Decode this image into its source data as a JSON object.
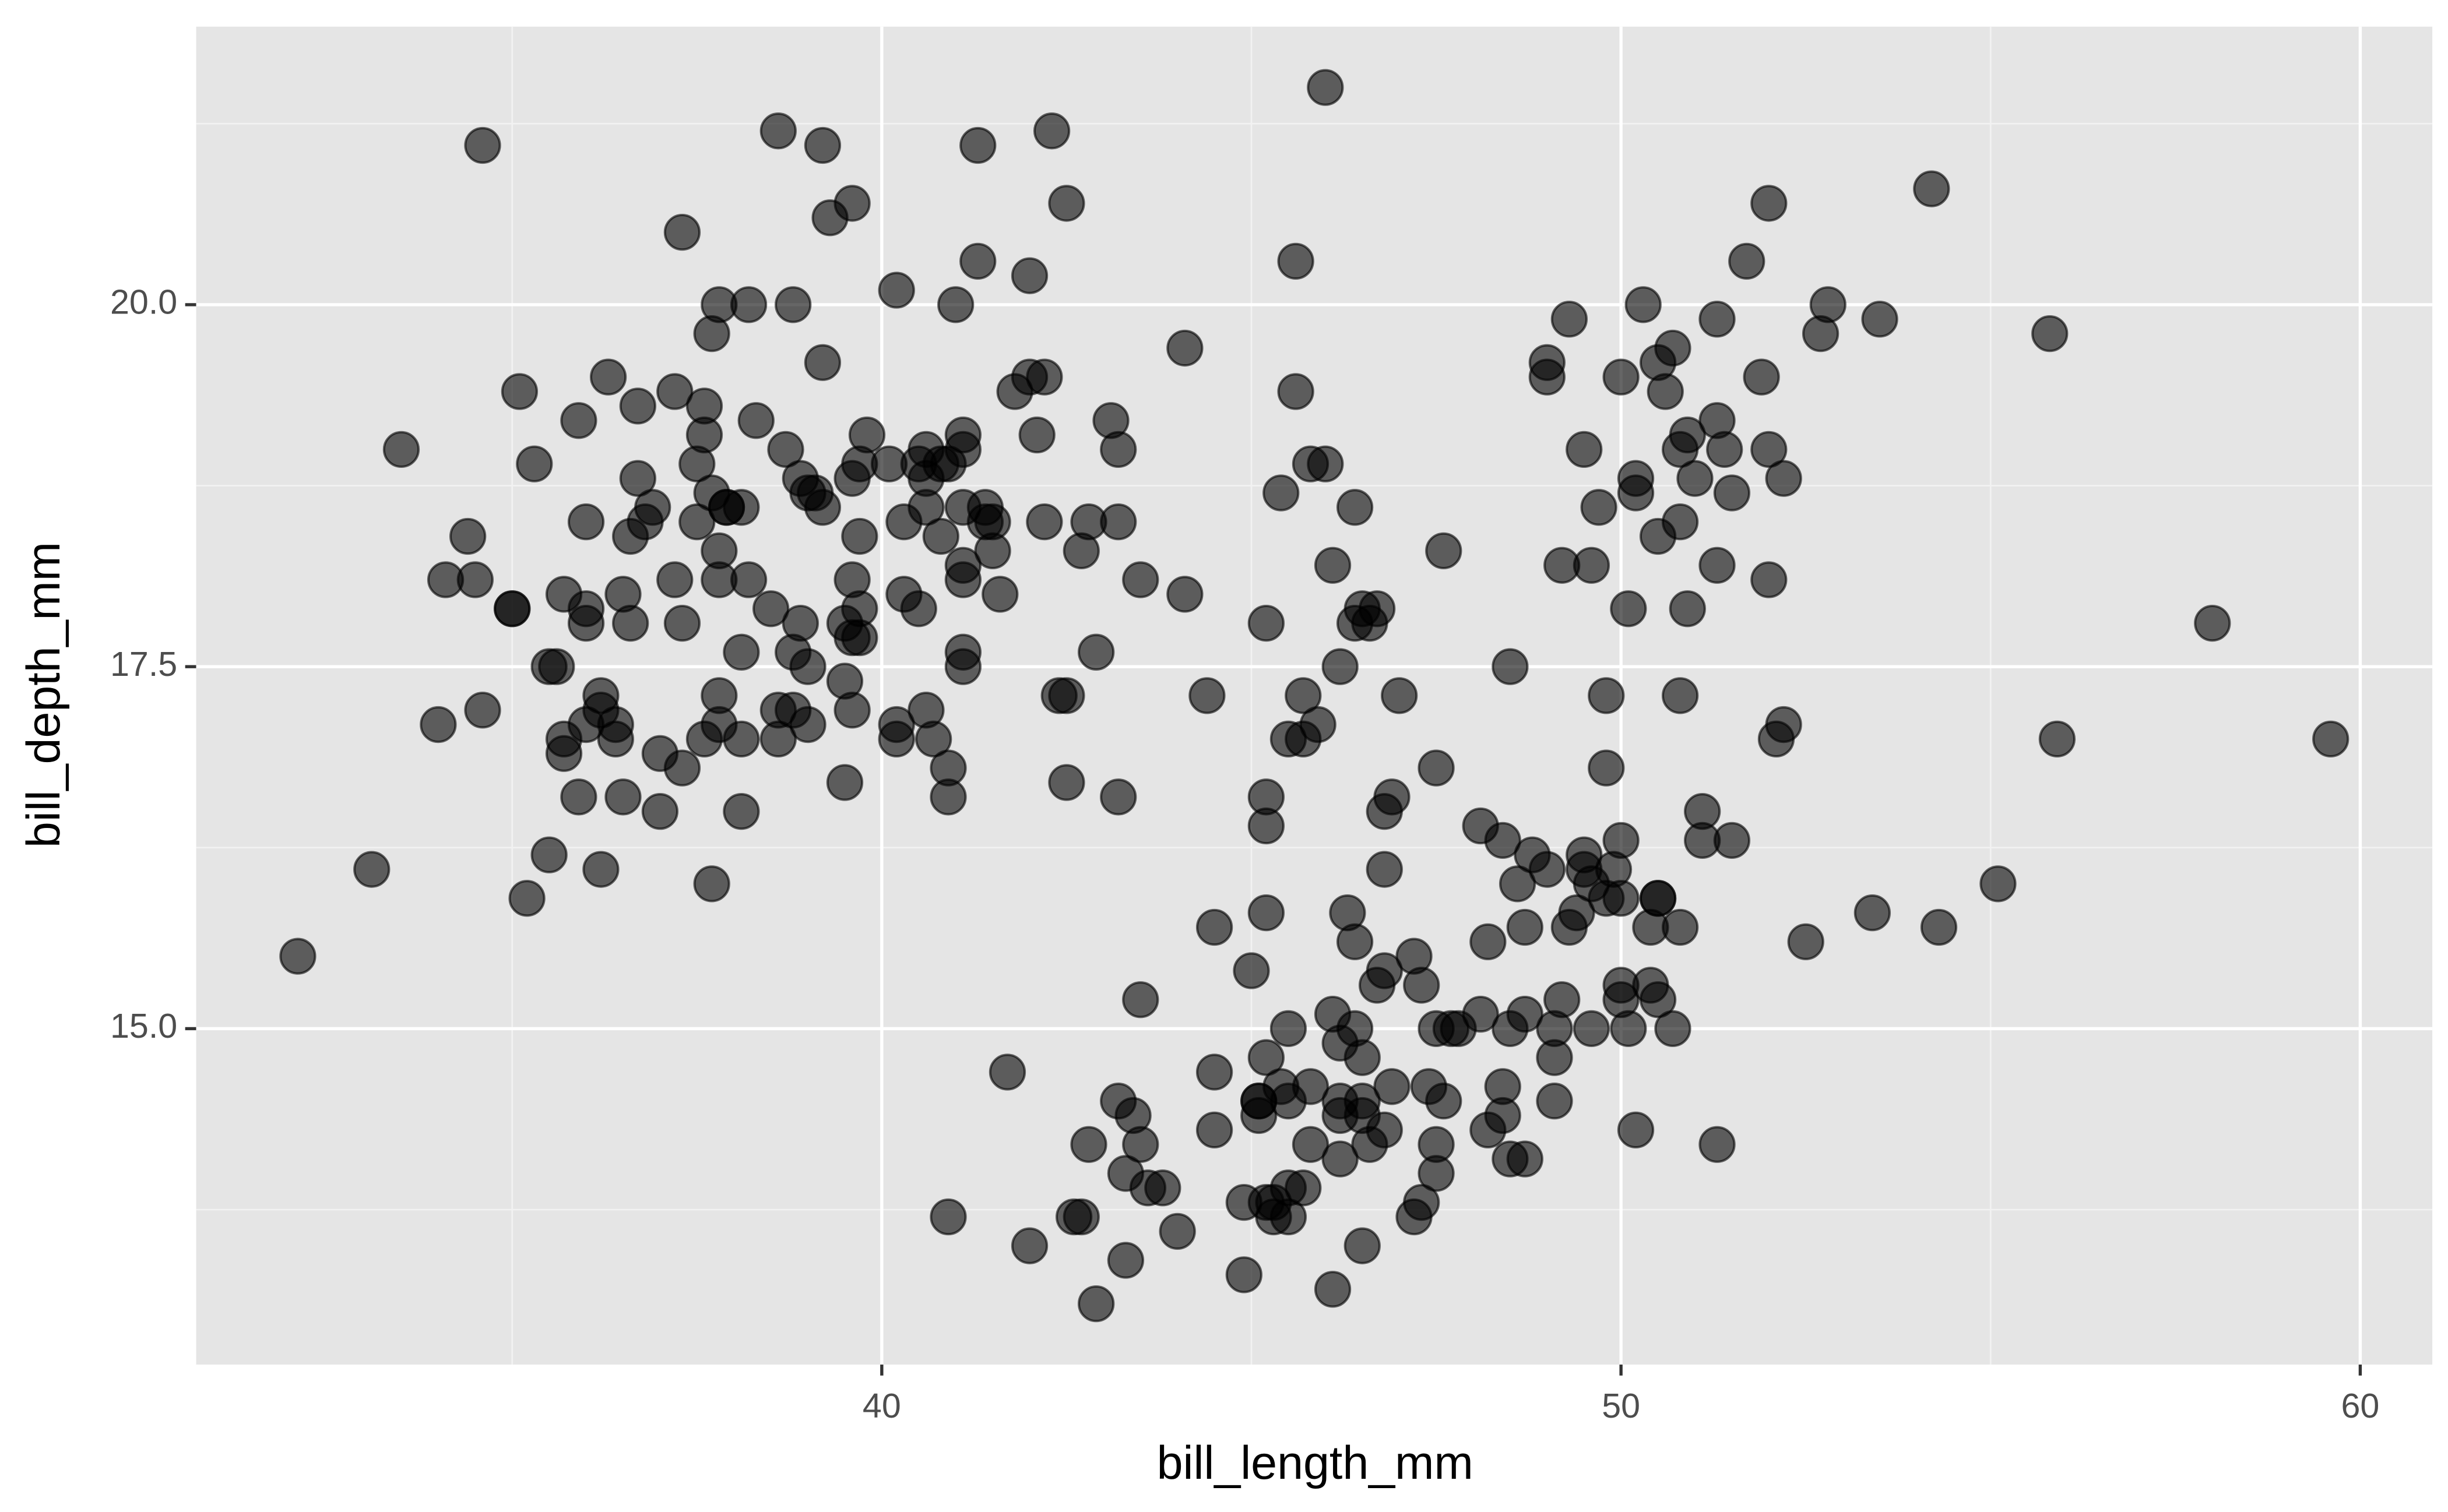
{
  "chart_data": {
    "type": "scatter",
    "x_label": "bill_length_mm",
    "y_label": "bill_depth_mm",
    "color": "#000000",
    "alpha": 0.6,
    "grid": true,
    "xlim": [
      30.725,
      60.975
    ],
    "ylim": [
      12.68,
      21.92
    ],
    "xticks": [
      40,
      50,
      60
    ],
    "yticks": [
      {
        "value": 15,
        "label": "15.0"
      },
      17.5,
      {
        "value": 20,
        "label": "20.0"
      }
    ],
    "x_minor_ticks": [
      35,
      45,
      55
    ],
    "y_minor_ticks": [
      13.75,
      16.25,
      18.75,
      21.25
    ],
    "x": [
      39.1,
      39.5,
      40.3,
      36.7,
      39.3,
      38.9,
      39.2,
      34.1,
      42,
      37.8,
      37.8,
      41.1,
      38.6,
      34.6,
      36.6,
      38.7,
      42.5,
      34.4,
      46,
      37.8,
      37.7,
      35.9,
      38.2,
      38.8,
      35.3,
      40.6,
      40.5,
      37.9,
      40.5,
      39.5,
      37.2,
      39.5,
      40.9,
      36.4,
      39.2,
      38.8,
      42.2,
      37.6,
      39.8,
      36.5,
      40.8,
      36,
      44.1,
      37,
      39.6,
      41.1,
      37.5,
      36,
      42.3,
      39.6,
      40.1,
      35,
      42,
      34.5,
      41.4,
      39,
      40.6,
      36.5,
      37.6,
      35.7,
      41.3,
      37.6,
      41.1,
      36.4,
      41.6,
      35.5,
      41.1,
      35.9,
      41.8,
      33.5,
      39.7,
      39.6,
      45.8,
      35.5,
      42.8,
      40.9,
      37.2,
      36.2,
      42.1,
      34.6,
      42.9,
      36.7,
      35.1,
      37.3,
      41.3,
      36.3,
      36.9,
      38.3,
      38.9,
      35.7,
      41.1,
      34,
      39.6,
      36.2,
      40.8,
      38.1,
      40.3,
      33.1,
      43.2,
      35,
      41,
      37.7,
      37.8,
      37.9,
      39.7,
      38.6,
      38.2,
      38.1,
      43.2,
      38.1,
      45.6,
      39.7,
      42.2,
      39.6,
      42.7,
      38.6,
      37.3,
      35.7,
      41.1,
      36.2,
      37.7,
      40.2,
      41.4,
      35.2,
      40.6,
      38.8,
      41.5,
      39,
      44.1,
      38.5,
      43.1,
      36.8,
      37.5,
      38.1,
      41.1,
      35.6,
      40.2,
      37,
      39.7,
      40.2,
      40.6,
      32.1,
      40.7,
      37.3,
      39,
      39.2,
      36.6,
      36,
      37.8,
      36,
      41.5,
      46.1,
      50,
      48.7,
      50,
      47.6,
      46.5,
      45.4,
      46.7,
      43.3,
      46.8,
      40.9,
      49,
      45.5,
      48.4,
      45.8,
      49.3,
      42,
      49.2,
      46.2,
      48.7,
      50.2,
      45.1,
      46.5,
      46.3,
      42.9,
      46.1,
      44.5,
      47.8,
      48.2,
      50,
      47.3,
      42.8,
      45.1,
      59.6,
      49.1,
      48.4,
      42.6,
      44.4,
      44,
      48.7,
      42.7,
      49.6,
      45.3,
      49.6,
      50.5,
      43.6,
      45.5,
      50.5,
      44.9,
      45.2,
      46.6,
      48.5,
      45.1,
      50.1,
      46.5,
      45,
      43.8,
      45.5,
      43.2,
      50.4,
      45.3,
      46.2,
      45.7,
      54.3,
      45.8,
      49.8,
      46.2,
      49.5,
      43.5,
      50.7,
      47.7,
      46.4,
      48.2,
      46.5,
      46.4,
      48.6,
      47.5,
      51.1,
      45.2,
      45.2,
      49.1,
      52.5,
      47.4,
      50,
      44.9,
      50.8,
      43.4,
      51.3,
      47.5,
      52.1,
      47.5,
      52.2,
      45.5,
      49.5,
      44.5,
      50.8,
      49.4,
      46.9,
      48.4,
      51.1,
      48.5,
      55.9,
      47.2,
      49.1,
      47.3,
      46.8,
      41.7,
      53.4,
      43.3,
      48.1,
      50.5,
      49.8,
      43.5,
      51.5,
      46.2,
      55.1,
      44.5,
      48.8,
      47.2,
      46.8,
      50.4,
      45.2,
      49.9,
      46.5,
      50,
      51.3,
      45.4,
      52.7,
      45.2,
      46.1,
      51.3,
      46,
      51.3,
      46.6,
      51.7,
      47,
      52,
      45.9,
      50.5,
      50.3,
      58,
      46.4,
      49.2,
      42.4,
      48.5,
      43.2,
      50.6,
      46.7,
      52,
      50.5,
      49.5,
      46.4,
      52.8,
      40.9,
      54.2,
      42.5,
      51,
      49.7,
      47.5,
      47.6,
      52,
      46.9,
      53.5,
      49,
      46.2,
      50.9,
      45.5,
      50.9,
      50.8,
      50.1,
      49,
      51.5,
      49.8,
      48.1,
      51.4,
      45.7,
      50.7,
      42.5,
      52.2,
      45.2,
      49.3,
      50.2,
      45.6,
      51.9,
      46.8,
      45.7,
      55.8,
      43.5,
      49.6,
      50.8,
      50.2
    ],
    "y": [
      18.7,
      17.4,
      18,
      19.3,
      20.6,
      17.8,
      19.6,
      18.1,
      20.2,
      17.1,
      17.3,
      17.6,
      21.2,
      21.1,
      17.8,
      19,
      20.7,
      18.4,
      21.5,
      18.3,
      18.7,
      19.2,
      18.1,
      17.2,
      18.9,
      18.6,
      17.9,
      18.6,
      18.9,
      16.7,
      18.1,
      17.8,
      18.9,
      17,
      21.1,
      20,
      18.5,
      19.3,
      19.1,
      18,
      18.4,
      18.5,
      19.7,
      16.9,
      18.8,
      19,
      18.9,
      17.9,
      21.2,
      17.7,
      18.9,
      17.9,
      19.5,
      18.1,
      18.6,
      17.5,
      18.8,
      16.6,
      19.1,
      16.9,
      21.1,
      17,
      18.2,
      17.1,
      18,
      16.2,
      19.1,
      16.6,
      19.4,
      19,
      18.4,
      17.2,
      18.9,
      17.5,
      18.5,
      16.8,
      19.4,
      16.1,
      19.1,
      17.2,
      17.6,
      18.8,
      19.4,
      17.8,
      20.3,
      19.5,
      18.6,
      19.2,
      18.8,
      18,
      18.1,
      17.1,
      18.1,
      17.3,
      18.9,
      18.6,
      18.5,
      16.1,
      18.5,
      17.9,
      20,
      16,
      20,
      18.6,
      18.9,
      17.2,
      20,
      17,
      19,
      16.5,
      20.3,
      17.7,
      19.5,
      20.7,
      18.3,
      17,
      20.5,
      17,
      18.6,
      17.2,
      19.8,
      17,
      18.5,
      15.9,
      19,
      17.6,
      18.3,
      17.1,
      18,
      17.9,
      19.2,
      18.5,
      18.5,
      17.6,
      17.5,
      17.5,
      20.1,
      16.5,
      17.9,
      17.1,
      17.2,
      15.5,
      17,
      16.8,
      18.7,
      18.6,
      18.4,
      17.8,
      18.1,
      17.1,
      18.5,
      13.2,
      16.3,
      14.1,
      15.2,
      14.5,
      13.5,
      14.6,
      15.3,
      13.4,
      15.4,
      13.7,
      16.1,
      13.7,
      14.6,
      14.6,
      15.7,
      13.5,
      15.2,
      14.5,
      15.1,
      14.3,
      14.5,
      14.5,
      15.8,
      13.1,
      15.1,
      14.3,
      15,
      14.3,
      15.3,
      15.3,
      14.2,
      14.5,
      17,
      14.8,
      16.3,
      13.7,
      17.3,
      13.6,
      15.7,
      13.7,
      16,
      13.7,
      15,
      15.9,
      13.9,
      13.9,
      15.9,
      13.3,
      15.8,
      14.2,
      14.1,
      14.4,
      15,
      14.4,
      15.4,
      13.9,
      15,
      14.5,
      15.3,
      13.8,
      14.9,
      13.9,
      15.7,
      14.2,
      16.8,
      14.4,
      16.2,
      14.2,
      15,
      15,
      15.6,
      15.6,
      14.8,
      15,
      16,
      14.2,
      16.3,
      13.8,
      16.4,
      14.5,
      15.6,
      14.6,
      15.9,
      13.8,
      17.3,
      14.4,
      14.2,
      14,
      17,
      15,
      17.1,
      14.5,
      16.1,
      14.7,
      15.7,
      15.8,
      14.6,
      14.4,
      16.5,
      15,
      17,
      15.5,
      15,
      13.8,
      16.1,
      14.7,
      15.8,
      14,
      15.1,
      15.2,
      15.9,
      15.2,
      16.3,
      14.1,
      16,
      15.7,
      16.2,
      13.7,
      14.3,
      15.7,
      14.8,
      16.1,
      17.9,
      19.5,
      19.2,
      18.7,
      19.8,
      17.8,
      18.2,
      18.2,
      18.9,
      19.9,
      17.8,
      20.3,
      17.3,
      18.1,
      17.1,
      19.6,
      20,
      17.8,
      18.6,
      18.2,
      17.3,
      17.5,
      16.6,
      19.4,
      17.9,
      19,
      18.4,
      19,
      17.8,
      20,
      16.6,
      20.8,
      16.7,
      18.8,
      18.6,
      16.8,
      18.3,
      20.7,
      16.6,
      19.9,
      19.5,
      17.5,
      19.1,
      17,
      17.9,
      18.5,
      17.9,
      19.6,
      18.7,
      17.3,
      16.4,
      19,
      17.3,
      19.7,
      17.3,
      18.8,
      16.6,
      19.9,
      18.8,
      19.4,
      19.5,
      16.5,
      17,
      19.8,
      18.1,
      18.2,
      19,
      18.7
    ]
  }
}
